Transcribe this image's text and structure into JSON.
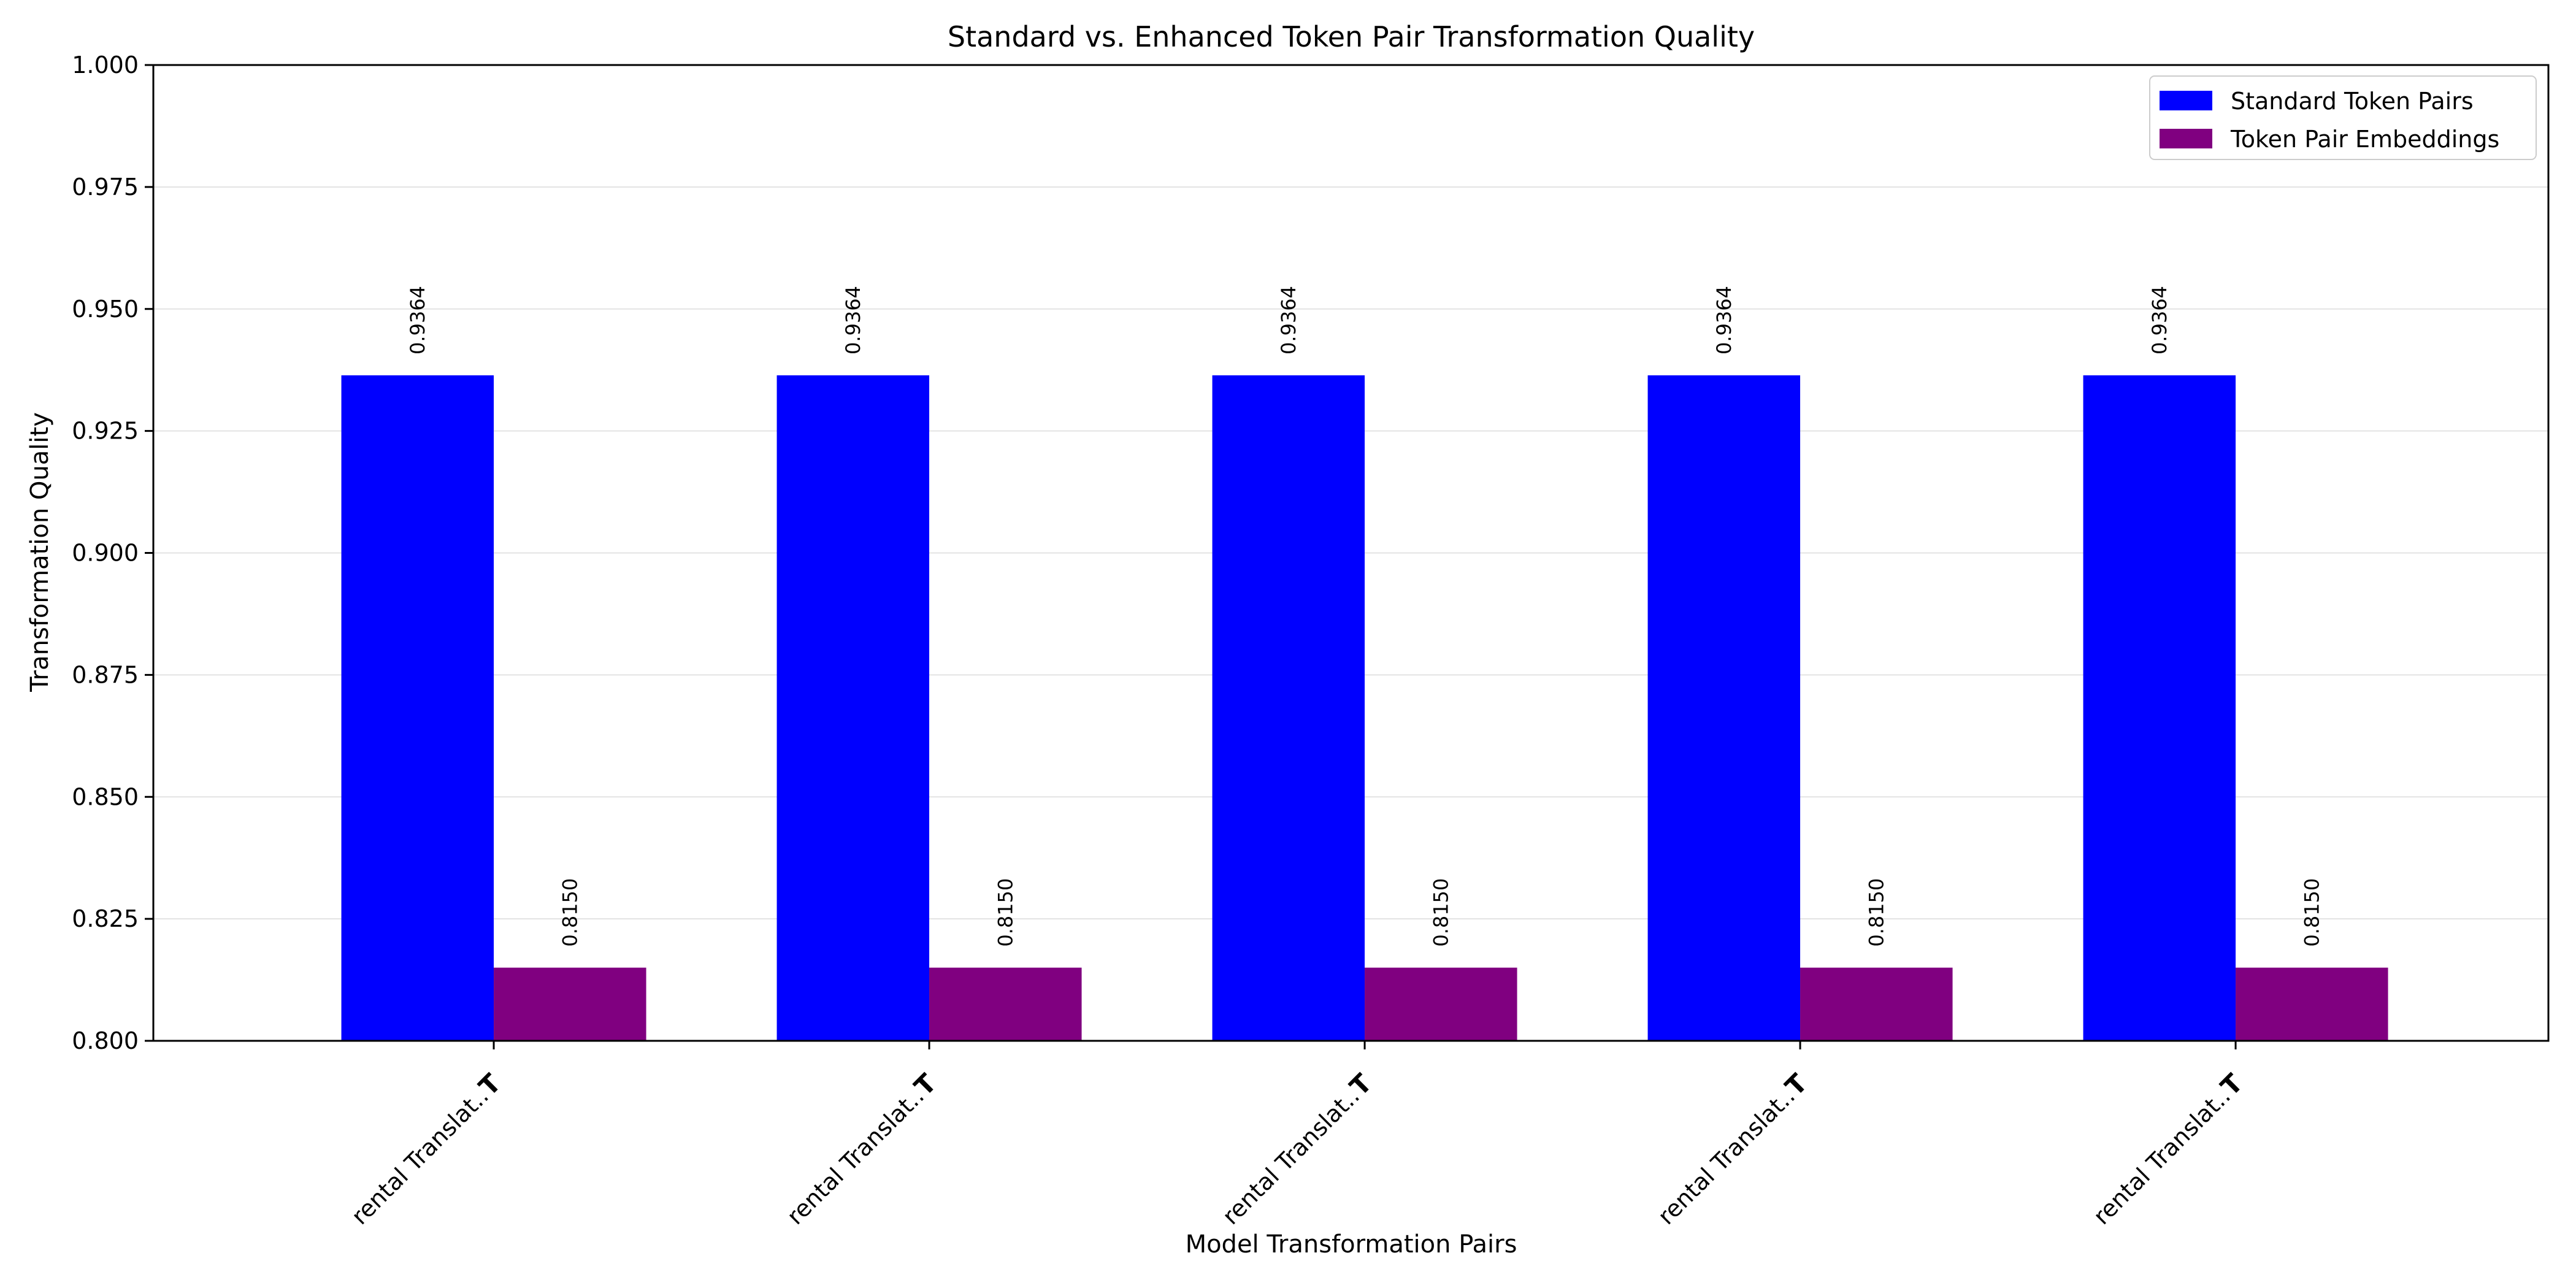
{
  "chart_data": {
    "type": "bar",
    "title": "Standard vs. Enhanced Token Pair Transformation Quality",
    "xlabel": "Model Transformation Pairs",
    "ylabel": "Transformation Quality",
    "categories": [
      {
        "label": "rental Translat..",
        "suffix": "T"
      },
      {
        "label": "rental Translat..",
        "suffix": "T"
      },
      {
        "label": "rental Translat..",
        "suffix": "T"
      },
      {
        "label": "rental Translat..",
        "suffix": "T"
      },
      {
        "label": "rental Translat..",
        "suffix": "T"
      }
    ],
    "series": [
      {
        "name": "Standard Token Pairs",
        "color": "#0000ff",
        "values": [
          0.9364,
          0.9364,
          0.9364,
          0.9364,
          0.9364
        ],
        "labels": [
          "0.9364",
          "0.9364",
          "0.9364",
          "0.9364",
          "0.9364"
        ]
      },
      {
        "name": "Token Pair Embeddings",
        "color": "#800080",
        "values": [
          0.815,
          0.815,
          0.815,
          0.815,
          0.815
        ],
        "labels": [
          "0.8150",
          "0.8150",
          "0.8150",
          "0.8150",
          "0.8150"
        ]
      }
    ],
    "ylim": [
      0.8,
      1.0
    ],
    "yticks": [
      0.8,
      0.825,
      0.85,
      0.875,
      0.9,
      0.925,
      0.95,
      0.975,
      1.0
    ],
    "ytick_labels": [
      "0.800",
      "0.825",
      "0.850",
      "0.875",
      "0.900",
      "0.925",
      "0.950",
      "0.975",
      "1.000"
    ],
    "grid": "horizontal",
    "legend_position": "top-right"
  }
}
